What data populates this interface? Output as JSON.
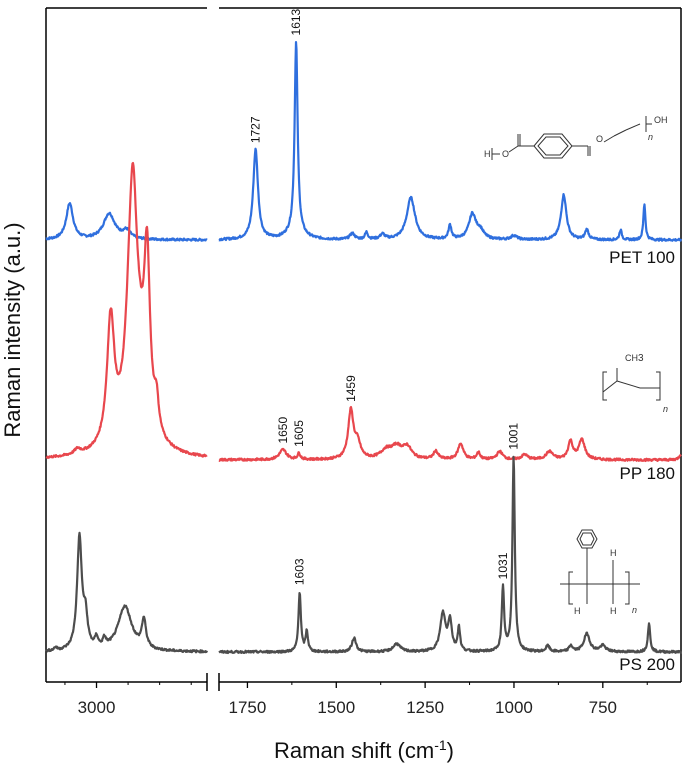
{
  "chart_data": {
    "type": "line",
    "xlabel": "Raman shift (cm",
    "xlabel_sup": "-1",
    "xlabel_end": ")",
    "ylabel": "Raman intensity (a.u.)",
    "x_break": true,
    "x_reversed": true,
    "x_segments": [
      {
        "range": [
          3160,
          2650
        ],
        "ticks": [
          3000
        ]
      },
      {
        "range": [
          1830,
          530
        ],
        "ticks": [
          1750,
          1500,
          1250,
          1000,
          750
        ]
      }
    ],
    "x_tick_labels": [
      "3000",
      "1750",
      "1500",
      "1250",
      "1000",
      "750"
    ],
    "series": [
      {
        "name": "PET 100",
        "color": "#2f6fde",
        "baseline": 0,
        "bands": [
          [
            3085,
            36,
            13
          ],
          [
            2960,
            26,
            22
          ],
          [
            2905,
            8,
            15
          ],
          [
            1727,
            90,
            8
          ],
          [
            1613,
            190,
            5
          ],
          [
            1615,
            8,
            25
          ],
          [
            1455,
            6,
            8
          ],
          [
            1415,
            7,
            5
          ],
          [
            1370,
            5,
            8
          ],
          [
            1290,
            42,
            14
          ],
          [
            1180,
            14,
            5
          ],
          [
            1117,
            25,
            12
          ],
          [
            1095,
            8,
            12
          ],
          [
            1000,
            4,
            10
          ],
          [
            860,
            45,
            9
          ],
          [
            795,
            10,
            6
          ],
          [
            700,
            10,
            4
          ],
          [
            633,
            36,
            3.5
          ]
        ],
        "peaks": [
          {
            "x": 1727,
            "label": "1727"
          },
          {
            "x": 1613,
            "label": "1613"
          }
        ]
      },
      {
        "name": "PP 180",
        "color": "#e8474d",
        "baseline": 0,
        "bands": [
          [
            3060,
            5,
            12
          ],
          [
            2955,
            125,
            14
          ],
          [
            2890,
            135,
            18
          ],
          [
            2840,
            160,
            11
          ],
          [
            2883,
            60,
            10
          ],
          [
            2810,
            30,
            8
          ],
          [
            2875,
            110,
            32
          ],
          [
            1650,
            10,
            12
          ],
          [
            1605,
            6,
            5
          ],
          [
            1459,
            48,
            9
          ],
          [
            1440,
            15,
            10
          ],
          [
            1360,
            8,
            18
          ],
          [
            1330,
            12,
            20
          ],
          [
            1300,
            11,
            14
          ],
          [
            1220,
            8,
            8
          ],
          [
            1150,
            16,
            9
          ],
          [
            1100,
            7,
            6
          ],
          [
            1040,
            8,
            10
          ],
          [
            970,
            5,
            10
          ],
          [
            900,
            8,
            12
          ],
          [
            841,
            18,
            8
          ],
          [
            809,
            20,
            10
          ],
          [
            530,
            6,
            6
          ]
        ],
        "peaks": [
          {
            "x": 1650,
            "label": "1650"
          },
          {
            "x": 1605,
            "label": "1605"
          },
          {
            "x": 1459,
            "label": "1459"
          }
        ]
      },
      {
        "name": "PS 200",
        "color": "#4d4d4d",
        "baseline": 0,
        "bands": [
          [
            3130,
            3,
            5
          ],
          [
            3054,
            112,
            9
          ],
          [
            3035,
            30,
            8
          ],
          [
            3000,
            10,
            6
          ],
          [
            2975,
            8,
            6
          ],
          [
            2910,
            45,
            26
          ],
          [
            2850,
            28,
            8
          ],
          [
            1603,
            60,
            4
          ],
          [
            1583,
            20,
            4
          ],
          [
            1450,
            14,
            7
          ],
          [
            1330,
            8,
            12
          ],
          [
            1200,
            38,
            9
          ],
          [
            1180,
            30,
            6
          ],
          [
            1155,
            24,
            4
          ],
          [
            1031,
            63,
            4
          ],
          [
            1001,
            195,
            4
          ],
          [
            905,
            6,
            6
          ],
          [
            840,
            6,
            6
          ],
          [
            795,
            18,
            10
          ],
          [
            750,
            6,
            10
          ],
          [
            620,
            28,
            4
          ]
        ],
        "peaks": [
          {
            "x": 1603,
            "label": "1603"
          },
          {
            "x": 1031,
            "label": "1031"
          },
          {
            "x": 1001,
            "label": "1001"
          }
        ]
      }
    ],
    "structures": {
      "pet": {
        "left_h": "H",
        "left_o": "O",
        "right_oh": "OH",
        "n": "n"
      },
      "pp": {
        "ch3": "CH",
        "ch3_sub": "3",
        "n": "n"
      },
      "ps": {
        "h1": "H",
        "h2": "H",
        "h3": "H",
        "n": "n"
      }
    }
  }
}
